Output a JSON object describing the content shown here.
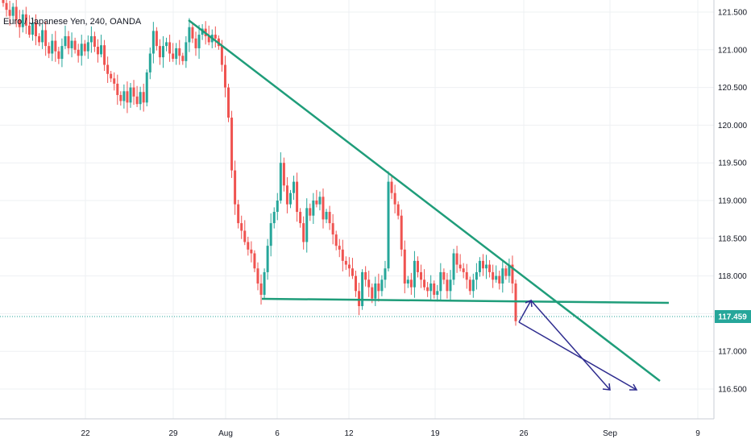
{
  "chart_data": {
    "type": "candlestick",
    "title": "Euro / Japanese Yen, 240, OANDA",
    "ylim": [
      116.1,
      121.72
    ],
    "y_ticks": [
      "121.500",
      "121.000",
      "120.500",
      "120.000",
      "119.500",
      "119.000",
      "118.500",
      "118.000",
      "117.500",
      "117.000",
      "116.500"
    ],
    "x_ticks": [
      "22",
      "29",
      "Aug",
      "6",
      "12",
      "19",
      "26",
      "Sep",
      "9"
    ],
    "last_price": "117.459",
    "colors": {
      "up": "#26a69a",
      "down": "#ef5350",
      "trendline": "#1f9d7a",
      "arrow": "#2e2c8f",
      "price_tag": "#26a69a"
    },
    "closes": [
      121.62,
      121.53,
      121.45,
      121.57,
      121.4,
      121.3,
      121.47,
      121.32,
      121.2,
      121.36,
      121.18,
      121.1,
      121.26,
      121.05,
      120.95,
      121.12,
      120.98,
      120.88,
      121.05,
      121.18,
      121.02,
      121.12,
      121.0,
      120.92,
      121.08,
      120.98,
      121.1,
      121.18,
      121.04,
      120.94,
      121.06,
      120.8,
      120.68,
      120.62,
      120.55,
      120.4,
      120.32,
      120.45,
      120.3,
      120.5,
      120.38,
      120.28,
      120.44,
      120.3,
      120.7,
      120.95,
      121.25,
      121.05,
      120.9,
      121.05,
      121.1,
      120.95,
      120.88,
      121.02,
      120.92,
      120.85,
      121.1,
      121.3,
      121.15,
      121.02,
      121.2,
      121.28,
      121.18,
      121.1,
      121.2,
      121.15,
      121.05,
      120.8,
      120.5,
      120.1,
      119.4,
      118.95,
      118.7,
      118.6,
      118.45,
      118.35,
      118.3,
      118.1,
      117.9,
      117.75,
      118.05,
      118.4,
      118.7,
      118.85,
      119.0,
      119.5,
      119.2,
      118.95,
      119.1,
      119.25,
      118.85,
      118.7,
      118.45,
      118.9,
      118.8,
      119.0,
      118.95,
      119.05,
      118.75,
      118.85,
      118.7,
      118.55,
      118.4,
      118.35,
      118.2,
      118.15,
      118.1,
      118.0,
      117.8,
      117.6,
      118.05,
      117.95,
      117.85,
      117.7,
      117.9,
      117.8,
      117.95,
      118.1,
      119.25,
      119.1,
      118.95,
      118.8,
      118.35,
      117.9,
      117.95,
      117.85,
      118.2,
      118.05,
      117.95,
      117.85,
      117.8,
      117.9,
      117.75,
      117.8,
      118.05,
      117.95,
      117.8,
      117.95,
      118.3,
      118.15,
      118.1,
      118.05,
      117.95,
      117.8,
      117.95,
      118.05,
      118.2,
      118.1,
      118.15,
      118.05,
      117.95,
      118.0,
      117.9,
      118.1,
      118.0,
      118.15,
      117.9,
      117.4
    ]
  },
  "chart_ui": {
    "tooltip_title": "Euro / Japanese Yen, 240, OANDA"
  }
}
